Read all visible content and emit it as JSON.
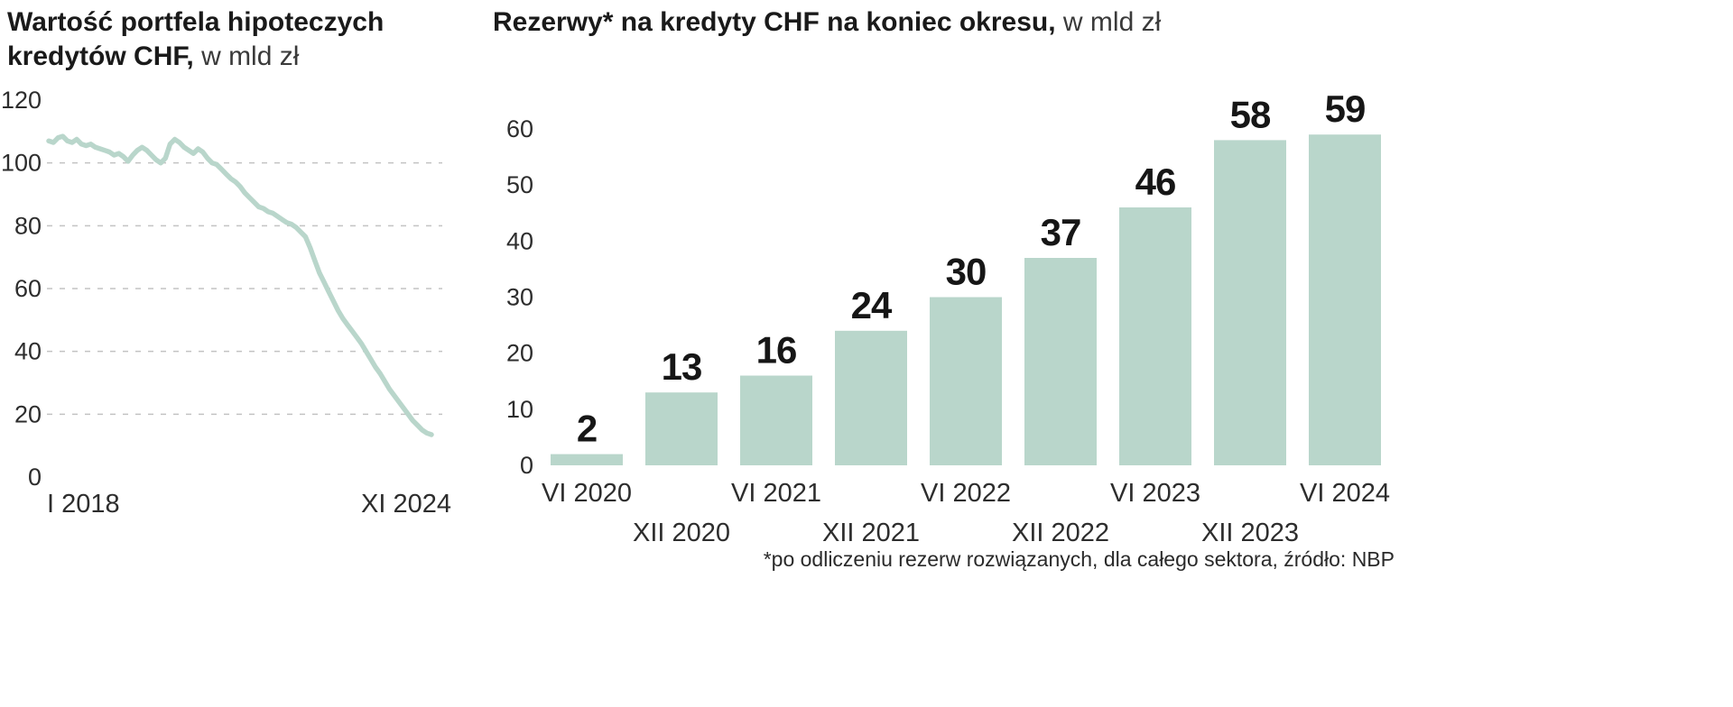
{
  "colors": {
    "series": "#b9d6cb",
    "grid": "#c3c3c3",
    "title_text": "#1a1a1a",
    "axis_text": "#2d2d2d",
    "bar_label_text": "#161616"
  },
  "footnote": "*po odliczeniu rezerw rozwiązanych, dla całego sektora, źródło: NBP",
  "chart_data": [
    {
      "type": "line",
      "title": "Wartość portfela hipoteczych kredytów CHF, w mld zł",
      "title_bold": "Wartość portfela hipoteczych kredytów CHF,",
      "title_light": "w mld zł",
      "ylabel": "mld zł",
      "ylim": [
        0,
        120
      ],
      "yticks": [
        0,
        20,
        40,
        60,
        80,
        100,
        120
      ],
      "grid": "dashed-horizontal",
      "x_axis_labels": {
        "start": "I 2018",
        "end": "XI 2024"
      },
      "x_period": "monthly, I 2018 - XI 2024",
      "values": [
        107,
        106.5,
        108,
        108.5,
        107,
        106.5,
        107.5,
        106,
        105.5,
        106,
        105,
        104.5,
        104,
        103.5,
        102.5,
        103,
        102,
        100.5,
        102.5,
        104,
        105,
        104,
        102.5,
        101,
        100,
        101.5,
        106,
        107.5,
        106.5,
        105,
        104,
        103,
        104.5,
        103.5,
        101.5,
        100,
        99.5,
        98,
        96.5,
        95,
        94,
        92.5,
        90.5,
        89,
        87.5,
        86,
        85.5,
        84.5,
        84,
        83,
        82,
        81,
        80.5,
        79.5,
        78,
        76.5,
        73,
        69,
        65,
        62,
        59,
        56,
        53,
        50.5,
        48.5,
        46.5,
        44.5,
        42.5,
        40,
        37.5,
        35,
        33,
        30.5,
        28,
        26,
        24,
        22,
        20,
        18,
        16.5,
        15,
        14,
        13.5
      ]
    },
    {
      "type": "bar",
      "title": "Rezerwy* na kredyty CHF na koniec okresu, w mld zł",
      "title_bold": "Rezerwy* na kredyty CHF na koniec okresu,",
      "title_light": "w mld zł",
      "ylabel": "mld zł",
      "ylim": [
        0,
        60
      ],
      "yticks": [
        0,
        10,
        20,
        30,
        40,
        50,
        60
      ],
      "grid": "off",
      "bar_value_labels": true,
      "categories": [
        "VI 2020",
        "XII 2020",
        "VI 2021",
        "XII 2021",
        "VI 2022",
        "XII 2022",
        "VI 2023",
        "XII 2023",
        "VI 2024"
      ],
      "values": [
        2,
        13,
        16,
        24,
        30,
        37,
        46,
        58,
        59
      ]
    }
  ]
}
